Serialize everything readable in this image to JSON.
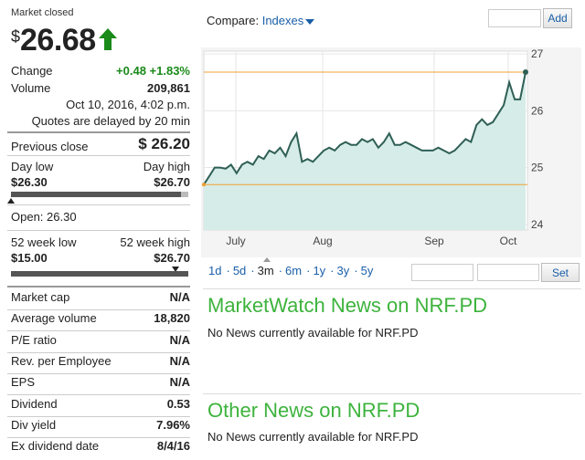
{
  "quote": {
    "market_status": "Market closed",
    "currency_symbol": "$",
    "price": "26.68",
    "change_label": "Change",
    "change_value": "+0.48 +1.83%",
    "volume_label": "Volume",
    "volume_value": "209,861",
    "timestamp": "Oct 10, 2016, 4:02 p.m.",
    "delay_note": "Quotes are delayed by 20 min",
    "prev_close_label": "Previous close",
    "prev_close_value": "$ 26.20",
    "day_low_label": "Day low",
    "day_high_label": "Day high",
    "day_low_value": "$26.30",
    "day_high_value": "$26.70",
    "open_text": "Open: 26.30",
    "wk52_low_label": "52 week low",
    "wk52_high_label": "52 week high",
    "wk52_low_value": "$15.00",
    "wk52_high_value": "$26.70",
    "up_color": "#1a8a1a"
  },
  "stats": [
    {
      "label": "Market cap",
      "value": "N/A"
    },
    {
      "label": "Average volume",
      "value": "18,820"
    },
    {
      "label": "P/E ratio",
      "value": "N/A"
    },
    {
      "label": "Rev. per Employee",
      "value": "N/A"
    },
    {
      "label": "EPS",
      "value": "N/A"
    },
    {
      "label": "Dividend",
      "value": "0.53"
    },
    {
      "label": "Div yield",
      "value": "7.96%"
    },
    {
      "label": "Ex dividend date",
      "value": "8/4/16"
    }
  ],
  "compare": {
    "label": "Compare:",
    "dropdown_value": "Indexes",
    "add_label": "Add"
  },
  "chart_data": {
    "type": "area",
    "x_tick_labels": [
      "July",
      "Aug",
      "Sep",
      "Oct"
    ],
    "y_tick_labels": [
      "27",
      "26",
      "25",
      "24"
    ],
    "ylim": [
      23.9,
      27.05
    ],
    "reference_lines": [
      26.68,
      24.7
    ],
    "line_color": "#2f5f55",
    "fill_color": "#d6ece8",
    "ref_line_color": "#f0a030",
    "series": [
      {
        "values": [
          24.7,
          24.85,
          25.0,
          25.0,
          24.98,
          25.05,
          24.9,
          25.05,
          25.1,
          25.05,
          25.2,
          25.15,
          25.3,
          25.25,
          25.35,
          25.2,
          25.45,
          25.6,
          25.1,
          25.15,
          25.1,
          25.2,
          25.3,
          25.35,
          25.3,
          25.4,
          25.45,
          25.4,
          25.4,
          25.5,
          25.45,
          25.5,
          25.35,
          25.45,
          25.6,
          25.4,
          25.4,
          25.45,
          25.4,
          25.35,
          25.3,
          25.3,
          25.3,
          25.35,
          25.3,
          25.25,
          25.3,
          25.4,
          25.5,
          25.45,
          25.75,
          25.85,
          25.75,
          25.8,
          25.95,
          26.1,
          26.5,
          26.2,
          26.2,
          26.68
        ]
      }
    ]
  },
  "range": {
    "options": [
      "1d",
      "5d",
      "3m",
      "6m",
      "1y",
      "3y",
      "5y"
    ],
    "selected": "3m",
    "set_label": "Set"
  },
  "news": {
    "mw_title": "MarketWatch News on NRF.PD",
    "mw_body": "No News currently available for NRF.PD",
    "other_title": "Other News on NRF.PD",
    "other_body": "No News currently available for NRF.PD",
    "title_color": "#3db33d"
  }
}
